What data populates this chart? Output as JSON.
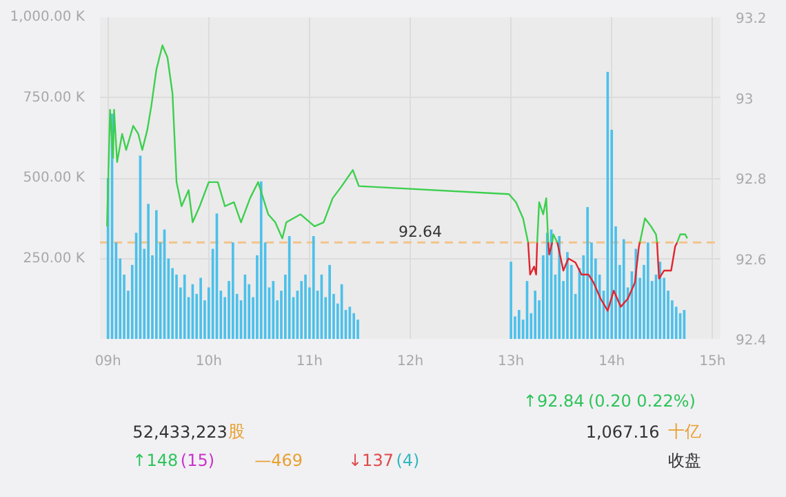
{
  "chart_data": [
    {
      "type": "bar",
      "xlim": [
        8.92,
        15.08
      ],
      "xticks": [
        {
          "value": 9,
          "label": "09h"
        },
        {
          "value": 10,
          "label": "10h"
        },
        {
          "value": 11,
          "label": "11h"
        },
        {
          "value": 12,
          "label": "12h"
        },
        {
          "value": 13,
          "label": "13h"
        },
        {
          "value": 14,
          "label": "14h"
        },
        {
          "value": 15,
          "label": "15h"
        }
      ],
      "ylim": [
        0,
        1000
      ],
      "yticks": [
        {
          "value": 250,
          "label": "250.00 K"
        },
        {
          "value": 500,
          "label": "500.00 K"
        },
        {
          "value": 750,
          "label": "750.00 K"
        },
        {
          "value": 1000,
          "label": "1,000.00 K"
        }
      ],
      "y2lim": [
        92.4,
        93.2
      ],
      "y2ticks": [
        92.4,
        92.6,
        92.8,
        93,
        93.2
      ],
      "grid": true,
      "ref_lines": [
        {
          "axis": "y2",
          "value": 92.64,
          "label": "92.64",
          "color": "#f2c48a",
          "line_style": "dashed"
        }
      ],
      "series": [
        {
          "type": "bar",
          "color": "#4cc0ea",
          "x": [
            9.0,
            9.04,
            9.08,
            9.12,
            9.16,
            9.2,
            9.24,
            9.28,
            9.32,
            9.36,
            9.4,
            9.44,
            9.48,
            9.52,
            9.56,
            9.6,
            9.64,
            9.68,
            9.72,
            9.76,
            9.8,
            9.84,
            9.88,
            9.92,
            9.96,
            10.0,
            10.04,
            10.08,
            10.12,
            10.16,
            10.2,
            10.24,
            10.28,
            10.32,
            10.36,
            10.4,
            10.44,
            10.48,
            10.52,
            10.56,
            10.6,
            10.64,
            10.68,
            10.72,
            10.76,
            10.8,
            10.84,
            10.88,
            10.92,
            10.96,
            11.0,
            11.04,
            11.08,
            11.12,
            11.16,
            11.2,
            11.24,
            11.28,
            11.32,
            11.36,
            11.4,
            11.44,
            11.48,
            13.0,
            13.04,
            13.08,
            13.12,
            13.16,
            13.2,
            13.24,
            13.28,
            13.32,
            13.36,
            13.4,
            13.44,
            13.48,
            13.52,
            13.56,
            13.6,
            13.64,
            13.68,
            13.72,
            13.76,
            13.8,
            13.84,
            13.88,
            13.92,
            13.96,
            14.0,
            14.04,
            14.08,
            14.12,
            14.16,
            14.2,
            14.24,
            14.28,
            14.32,
            14.36,
            14.4,
            14.44,
            14.48,
            14.52,
            14.56,
            14.6,
            14.64,
            14.68,
            14.72
          ],
          "values": [
            500,
            700,
            300,
            250,
            200,
            150,
            230,
            330,
            570,
            280,
            420,
            260,
            400,
            300,
            340,
            250,
            220,
            200,
            160,
            200,
            130,
            170,
            140,
            190,
            120,
            160,
            280,
            390,
            150,
            130,
            180,
            300,
            140,
            120,
            200,
            170,
            130,
            260,
            490,
            300,
            160,
            180,
            120,
            150,
            200,
            320,
            130,
            150,
            180,
            200,
            160,
            320,
            150,
            200,
            130,
            230,
            140,
            110,
            170,
            90,
            100,
            80,
            60,
            240,
            70,
            90,
            60,
            180,
            80,
            150,
            120,
            260,
            330,
            340,
            200,
            320,
            180,
            270,
            230,
            140,
            220,
            260,
            410,
            300,
            250,
            200,
            150,
            830,
            650,
            350,
            230,
            310,
            160,
            210,
            280,
            190,
            230,
            300,
            180,
            200,
            240,
            190,
            150,
            120,
            100,
            80,
            90
          ]
        },
        {
          "type": "line",
          "axis": "y2",
          "color": "#3ccf4e",
          "x": [
            8.99,
            9.02,
            9.05,
            9.06,
            9.09,
            9.14,
            9.18,
            9.25,
            9.3,
            9.34,
            9.39,
            9.43,
            9.48,
            9.54,
            9.59,
            9.64,
            9.68,
            9.73,
            9.8,
            9.84,
            9.91,
            10.0,
            10.09,
            10.16,
            10.25,
            10.32,
            10.41,
            10.49,
            10.59,
            10.66,
            10.73,
            10.77,
            10.91,
            11.05,
            11.14,
            11.23,
            11.32,
            11.43,
            11.49,
            12.98,
            13.05,
            13.12,
            13.17,
            13.2,
            13.26,
            13.28,
            13.32,
            13.35,
            13.37,
            13.39,
            13.41,
            13.42,
            13.46,
            13.9,
            14.28,
            14.33,
            14.39,
            14.44,
            14.45,
            14.55,
            14.65,
            14.68,
            14.73,
            14.75
          ],
          "values": [
            92.68,
            92.97,
            92.85,
            92.97,
            92.84,
            92.91,
            92.87,
            92.93,
            92.91,
            92.87,
            92.92,
            92.98,
            93.07,
            93.13,
            93.1,
            93.01,
            92.79,
            92.73,
            92.77,
            92.69,
            92.73,
            92.79,
            92.79,
            92.73,
            92.74,
            92.69,
            92.75,
            92.79,
            92.71,
            92.69,
            92.65,
            92.69,
            92.71,
            92.68,
            92.69,
            92.75,
            92.78,
            92.82,
            92.78,
            92.76,
            92.74,
            92.7,
            92.64,
            null,
            92.64,
            92.74,
            92.71,
            92.75,
            92.64,
            null,
            92.64,
            92.66,
            92.64,
            null,
            92.64,
            92.7,
            92.68,
            92.66,
            92.64,
            null,
            92.64,
            92.66,
            92.66,
            92.65
          ]
        },
        {
          "type": "line",
          "axis": "y2",
          "color": "#e0242e",
          "x": [
            13.17,
            13.19,
            13.23,
            13.25,
            13.26,
            13.3,
            13.37,
            13.38,
            13.41,
            13.44,
            13.46,
            13.52,
            13.57,
            13.64,
            13.7,
            13.77,
            13.82,
            13.89,
            13.96,
            14.02,
            14.09,
            14.16,
            14.23,
            14.27,
            14.28,
            14.4,
            14.45,
            14.47,
            14.52,
            14.59,
            14.63,
            14.65
          ],
          "values": [
            92.64,
            92.56,
            92.58,
            92.56,
            92.64,
            null,
            92.64,
            92.61,
            92.64,
            null,
            92.64,
            92.57,
            92.6,
            92.59,
            92.56,
            92.56,
            92.54,
            92.5,
            92.47,
            92.52,
            92.48,
            92.5,
            92.54,
            92.63,
            92.64,
            null,
            92.64,
            92.55,
            92.57,
            92.57,
            92.63,
            92.64
          ]
        }
      ]
    },
    {
      "type": "other",
      "annotations": [
        "↑92.84",
        "(0.20  0.22%)",
        "52,433,223",
        "股",
        "1,067.16",
        "十亿",
        "↑148",
        "(15)",
        "—469",
        "↓137",
        "(4)",
        "收盘"
      ]
    }
  ]
}
